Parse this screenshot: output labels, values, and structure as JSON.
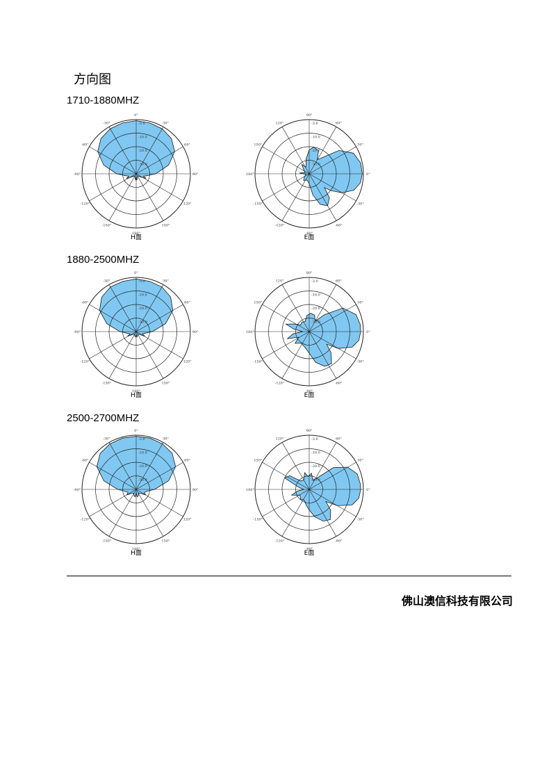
{
  "page": {
    "heading": "方向图",
    "company": "佛山澳信科技有限公司"
  },
  "colors": {
    "fill": "#80c8f2",
    "stroke": "#1a1a1a",
    "grid": "#222222"
  },
  "bands": [
    {
      "title": "1710-1880MHZ",
      "h": {
        "caption": "H面",
        "angle_labels": [
          "0°",
          "30°",
          "60°",
          "90°",
          "120°",
          "150°",
          "180°",
          "-150°",
          "-120°",
          "-90°",
          "-60°",
          "-30°"
        ],
        "ring_labels": [
          "-3.0",
          "-10.0",
          "-20.0",
          "-30.0"
        ],
        "pattern": [
          [
            0,
            0.98
          ],
          [
            15,
            0.97
          ],
          [
            30,
            0.96
          ],
          [
            45,
            0.92
          ],
          [
            60,
            0.82
          ],
          [
            75,
            0.62
          ],
          [
            90,
            0.36
          ],
          [
            100,
            0.2
          ],
          [
            108,
            0.14
          ],
          [
            115,
            0.2
          ],
          [
            122,
            0.12
          ],
          [
            132,
            0.07
          ],
          [
            150,
            0.05
          ],
          [
            165,
            0.08
          ],
          [
            175,
            0.12
          ],
          [
            180,
            0.05
          ],
          [
            185,
            0.12
          ],
          [
            195,
            0.08
          ],
          [
            210,
            0.05
          ],
          [
            228,
            0.07
          ],
          [
            238,
            0.12
          ],
          [
            245,
            0.2
          ],
          [
            252,
            0.14
          ],
          [
            260,
            0.2
          ],
          [
            270,
            0.36
          ],
          [
            285,
            0.62
          ],
          [
            300,
            0.82
          ],
          [
            315,
            0.92
          ],
          [
            330,
            0.96
          ],
          [
            345,
            0.97
          ]
        ]
      },
      "e": {
        "caption": "E面",
        "angle_labels": [
          "0°",
          "30°",
          "60°",
          "90°",
          "120°",
          "150°",
          "180°",
          "-150°",
          "-120°",
          "-90°",
          "-60°",
          "-30°"
        ],
        "ring_labels": [
          "-3.0",
          "-10.0",
          "-20.0",
          "-30.0"
        ],
        "pattern": [
          [
            0,
            0.98
          ],
          [
            10,
            0.96
          ],
          [
            20,
            0.88
          ],
          [
            30,
            0.7
          ],
          [
            38,
            0.5
          ],
          [
            42,
            0.38
          ],
          [
            50,
            0.58
          ],
          [
            60,
            0.68
          ],
          [
            70,
            0.6
          ],
          [
            80,
            0.4
          ],
          [
            90,
            0.18
          ],
          [
            110,
            0.12
          ],
          [
            130,
            0.16
          ],
          [
            150,
            0.1
          ],
          [
            170,
            0.06
          ],
          [
            185,
            0.18
          ],
          [
            195,
            0.08
          ],
          [
            215,
            0.12
          ],
          [
            232,
            0.22
          ],
          [
            245,
            0.14
          ],
          [
            258,
            0.28
          ],
          [
            270,
            0.44
          ],
          [
            280,
            0.5
          ],
          [
            292,
            0.46
          ],
          [
            300,
            0.3
          ],
          [
            310,
            0.4
          ],
          [
            322,
            0.7
          ],
          [
            335,
            0.9
          ],
          [
            348,
            0.97
          ]
        ]
      }
    },
    {
      "title": "1880-2500MHZ",
      "h": {
        "caption": "H面",
        "angle_labels": [
          "0°",
          "30°",
          "60°",
          "90°",
          "120°",
          "150°",
          "180°",
          "-150°",
          "-120°",
          "-90°",
          "-60°",
          "-30°"
        ],
        "ring_labels": [
          "-3.0",
          "-10.0",
          "-20.0",
          "-30.0"
        ],
        "pattern": [
          [
            0,
            0.97
          ],
          [
            15,
            0.96
          ],
          [
            30,
            0.95
          ],
          [
            45,
            0.9
          ],
          [
            60,
            0.78
          ],
          [
            75,
            0.56
          ],
          [
            90,
            0.3
          ],
          [
            100,
            0.17
          ],
          [
            110,
            0.12
          ],
          [
            118,
            0.18
          ],
          [
            126,
            0.1
          ],
          [
            140,
            0.06
          ],
          [
            160,
            0.08
          ],
          [
            172,
            0.1
          ],
          [
            180,
            0.05
          ],
          [
            188,
            0.1
          ],
          [
            200,
            0.08
          ],
          [
            220,
            0.06
          ],
          [
            234,
            0.1
          ],
          [
            242,
            0.18
          ],
          [
            250,
            0.12
          ],
          [
            260,
            0.17
          ],
          [
            270,
            0.3
          ],
          [
            285,
            0.56
          ],
          [
            300,
            0.78
          ],
          [
            315,
            0.9
          ],
          [
            330,
            0.95
          ],
          [
            345,
            0.96
          ]
        ]
      },
      "e": {
        "caption": "E面",
        "angle_labels": [
          "0°",
          "30°",
          "60°",
          "90°",
          "120°",
          "150°",
          "180°",
          "-150°",
          "-120°",
          "-90°",
          "-60°",
          "-30°"
        ],
        "ring_labels": [
          "-3.0",
          "-10.0",
          "-20.0",
          "-30.0"
        ],
        "pattern": [
          [
            0,
            0.95
          ],
          [
            10,
            0.93
          ],
          [
            20,
            0.84
          ],
          [
            30,
            0.62
          ],
          [
            36,
            0.4
          ],
          [
            44,
            0.56
          ],
          [
            55,
            0.72
          ],
          [
            66,
            0.7
          ],
          [
            78,
            0.58
          ],
          [
            90,
            0.4
          ],
          [
            105,
            0.3
          ],
          [
            125,
            0.26
          ],
          [
            140,
            0.34
          ],
          [
            152,
            0.22
          ],
          [
            162,
            0.42
          ],
          [
            172,
            0.3
          ],
          [
            180,
            0.12
          ],
          [
            190,
            0.3
          ],
          [
            198,
            0.45
          ],
          [
            208,
            0.3
          ],
          [
            218,
            0.2
          ],
          [
            232,
            0.22
          ],
          [
            248,
            0.2
          ],
          [
            262,
            0.3
          ],
          [
            275,
            0.34
          ],
          [
            288,
            0.32
          ],
          [
            300,
            0.22
          ],
          [
            312,
            0.42
          ],
          [
            325,
            0.76
          ],
          [
            340,
            0.92
          ],
          [
            352,
            0.95
          ]
        ]
      }
    },
    {
      "title": "2500-2700MHZ",
      "h": {
        "caption": "H面",
        "angle_labels": [
          "0°",
          "30°",
          "60°",
          "90°",
          "120°",
          "150°",
          "180°",
          "-150°",
          "-120°",
          "-90°",
          "-60°",
          "-30°"
        ],
        "ring_labels": [
          "-3.0",
          "-10.0",
          "-20.0",
          "-30.0"
        ],
        "pattern": [
          [
            0,
            0.98
          ],
          [
            15,
            0.98
          ],
          [
            30,
            0.97
          ],
          [
            45,
            0.94
          ],
          [
            60,
            0.84
          ],
          [
            75,
            0.62
          ],
          [
            90,
            0.34
          ],
          [
            100,
            0.2
          ],
          [
            110,
            0.16
          ],
          [
            120,
            0.2
          ],
          [
            130,
            0.12
          ],
          [
            145,
            0.08
          ],
          [
            160,
            0.12
          ],
          [
            172,
            0.14
          ],
          [
            180,
            0.06
          ],
          [
            188,
            0.14
          ],
          [
            200,
            0.12
          ],
          [
            215,
            0.08
          ],
          [
            230,
            0.12
          ],
          [
            240,
            0.2
          ],
          [
            250,
            0.16
          ],
          [
            260,
            0.2
          ],
          [
            270,
            0.34
          ],
          [
            285,
            0.62
          ],
          [
            300,
            0.84
          ],
          [
            315,
            0.94
          ],
          [
            330,
            0.97
          ],
          [
            345,
            0.98
          ]
        ]
      },
      "e": {
        "caption": "E面",
        "angle_labels": [
          "0°",
          "30°",
          "60°",
          "90°",
          "120°",
          "150°",
          "180°",
          "-150°",
          "-120°",
          "-90°",
          "-60°",
          "-30°"
        ],
        "ring_labels": [
          "-3.0",
          "-10.0",
          "-20.0",
          "-30.0"
        ],
        "pattern": [
          [
            0,
            0.95
          ],
          [
            10,
            0.93
          ],
          [
            20,
            0.84
          ],
          [
            30,
            0.6
          ],
          [
            36,
            0.38
          ],
          [
            44,
            0.55
          ],
          [
            55,
            0.68
          ],
          [
            66,
            0.64
          ],
          [
            78,
            0.52
          ],
          [
            90,
            0.38
          ],
          [
            100,
            0.3
          ],
          [
            115,
            0.22
          ],
          [
            132,
            0.24
          ],
          [
            148,
            0.2
          ],
          [
            162,
            0.34
          ],
          [
            172,
            0.22
          ],
          [
            180,
            0.1
          ],
          [
            192,
            0.2
          ],
          [
            205,
            0.5
          ],
          [
            215,
            0.44
          ],
          [
            225,
            0.22
          ],
          [
            240,
            0.2
          ],
          [
            255,
            0.32
          ],
          [
            265,
            0.24
          ],
          [
            278,
            0.3
          ],
          [
            292,
            0.18
          ],
          [
            305,
            0.26
          ],
          [
            318,
            0.6
          ],
          [
            330,
            0.82
          ],
          [
            342,
            0.93
          ],
          [
            354,
            0.95
          ]
        ]
      }
    }
  ]
}
